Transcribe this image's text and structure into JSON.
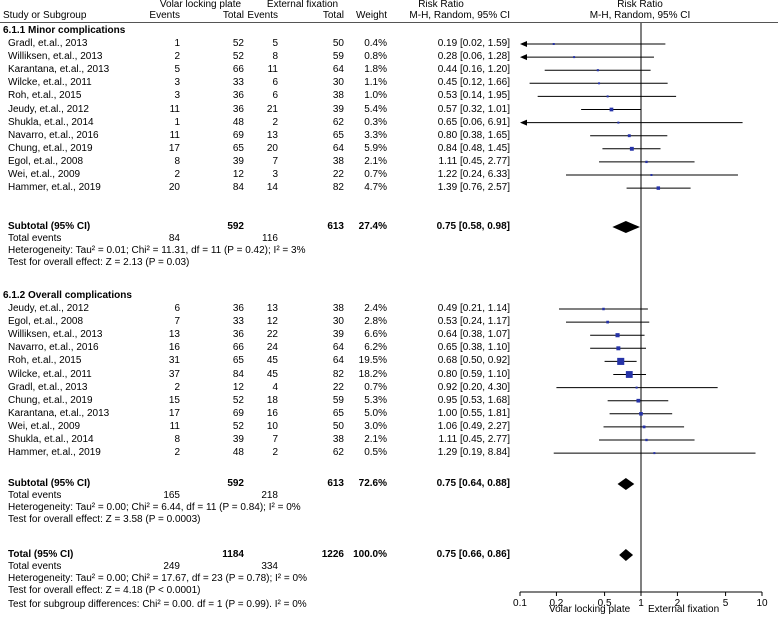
{
  "header": {
    "group1": "Volar locking plate",
    "group2": "External fixation",
    "rr_title1": "Risk Ratio",
    "rr_title2": "Risk Ratio",
    "col_study": "Study or Subgroup",
    "col_events1": "Events",
    "col_total1": "Total",
    "col_events2": "Events",
    "col_total2": "Total",
    "col_weight": "Weight",
    "col_method1": "M-H, Random, 95% CI",
    "col_method2": "M-H, Random, 95% CI"
  },
  "subgroup1": {
    "title": "6.1.1 Minor complications",
    "subtotal": {
      "label": "Subtotal (95% CI)",
      "total1": "592",
      "total2": "613",
      "weight": "27.4%",
      "ci": "0.75 [0.58, 0.98]"
    },
    "total_events": {
      "label": "Total events",
      "e1": "84",
      "e2": "116"
    },
    "heterogeneity": "Heterogeneity: Tau² = 0.01; Chi² = 11.31, df = 11 (P = 0.42); I² = 3%",
    "overall": "Test for overall effect: Z = 2.13 (P = 0.03)"
  },
  "subgroup2": {
    "title": "6.1.2 Overall complications",
    "subtotal": {
      "label": "Subtotal (95% CI)",
      "total1": "592",
      "total2": "613",
      "weight": "72.6%",
      "ci": "0.75 [0.64, 0.88]"
    },
    "total_events": {
      "label": "Total events",
      "e1": "165",
      "e2": "218"
    },
    "heterogeneity": "Heterogeneity: Tau² = 0.00; Chi² = 6.44, df = 11 (P = 0.84); I² = 0%",
    "overall": "Test for overall effect: Z = 3.58 (P = 0.0003)"
  },
  "total": {
    "label": "Total (95% CI)",
    "total1": "1184",
    "total2": "1226",
    "weight": "100.0%",
    "ci": "0.75 [0.66, 0.86]",
    "events_label": "Total events",
    "e1": "249",
    "e2": "334",
    "heterogeneity": "Heterogeneity: Tau² = 0.00; Chi² = 17.67, df = 23 (P = 0.78); I² = 0%",
    "overall": "Test for overall effect: Z = 4.18 (P < 0.0001)",
    "subgroup_diff": "Test for subgroup differences: Chi² = 0.00. df = 1 (P = 0.99). I² = 0%"
  },
  "axis": {
    "favours_left": "Volar locking plate",
    "favours_right": "External fixation"
  },
  "chart_data": {
    "type": "forest",
    "scale": "log",
    "xlim": [
      0.1,
      10
    ],
    "ticks": [
      0.1,
      0.2,
      0.5,
      1,
      2,
      5,
      10
    ],
    "tick_labels": [
      "0.1",
      "0.2",
      "0.5",
      "1",
      "2",
      "5",
      "10"
    ],
    "reference": 1,
    "subgroups": [
      {
        "name": "6.1.1 Minor complications",
        "studies": [
          {
            "study": "Gradl, et.al., 2013",
            "e1": "1",
            "n1": "52",
            "e2": "5",
            "n2": "50",
            "weight": "0.4%",
            "ci_text": "0.19 [0.02, 1.59]",
            "rr": 0.19,
            "lo": 0.02,
            "hi": 1.59
          },
          {
            "study": "Williksen, et.al., 2013",
            "e1": "2",
            "n1": "52",
            "e2": "8",
            "n2": "59",
            "weight": "0.8%",
            "ci_text": "0.28 [0.06, 1.28]",
            "rr": 0.28,
            "lo": 0.06,
            "hi": 1.28
          },
          {
            "study": "Karantana, et.al., 2013",
            "e1": "5",
            "n1": "66",
            "e2": "11",
            "n2": "64",
            "weight": "1.8%",
            "ci_text": "0.44 [0.16, 1.20]",
            "rr": 0.44,
            "lo": 0.16,
            "hi": 1.2
          },
          {
            "study": "Wilcke, et.al., 2011",
            "e1": "3",
            "n1": "33",
            "e2": "6",
            "n2": "30",
            "weight": "1.1%",
            "ci_text": "0.45 [0.12, 1.66]",
            "rr": 0.45,
            "lo": 0.12,
            "hi": 1.66
          },
          {
            "study": "Roh, et.al., 2015",
            "e1": "3",
            "n1": "36",
            "e2": "6",
            "n2": "38",
            "weight": "1.0%",
            "ci_text": "0.53 [0.14, 1.95]",
            "rr": 0.53,
            "lo": 0.14,
            "hi": 1.95
          },
          {
            "study": "Jeudy, et.al., 2012",
            "e1": "11",
            "n1": "36",
            "e2": "21",
            "n2": "39",
            "weight": "5.4%",
            "ci_text": "0.57 [0.32, 1.01]",
            "rr": 0.57,
            "lo": 0.32,
            "hi": 1.01
          },
          {
            "study": "Shukla, et.al., 2014",
            "e1": "1",
            "n1": "48",
            "e2": "2",
            "n2": "62",
            "weight": "0.3%",
            "ci_text": "0.65 [0.06, 6.91]",
            "rr": 0.65,
            "lo": 0.06,
            "hi": 6.91
          },
          {
            "study": "Navarro, et.al., 2016",
            "e1": "11",
            "n1": "69",
            "e2": "13",
            "n2": "65",
            "weight": "3.3%",
            "ci_text": "0.80 [0.38, 1.65]",
            "rr": 0.8,
            "lo": 0.38,
            "hi": 1.65
          },
          {
            "study": "Chung, et.al., 2019",
            "e1": "17",
            "n1": "65",
            "e2": "20",
            "n2": "64",
            "weight": "5.9%",
            "ci_text": "0.84 [0.48, 1.45]",
            "rr": 0.84,
            "lo": 0.48,
            "hi": 1.45
          },
          {
            "study": "Egol, et.al., 2008",
            "e1": "8",
            "n1": "39",
            "e2": "7",
            "n2": "38",
            "weight": "2.1%",
            "ci_text": "1.11 [0.45, 2.77]",
            "rr": 1.11,
            "lo": 0.45,
            "hi": 2.77
          },
          {
            "study": "Wei, et.al., 2009",
            "e1": "2",
            "n1": "12",
            "e2": "3",
            "n2": "22",
            "weight": "0.7%",
            "ci_text": "1.22 [0.24, 6.33]",
            "rr": 1.22,
            "lo": 0.24,
            "hi": 6.33
          },
          {
            "study": "Hammer, et.al., 2019",
            "e1": "20",
            "n1": "84",
            "e2": "14",
            "n2": "82",
            "weight": "4.7%",
            "ci_text": "1.39 [0.76, 2.57]",
            "rr": 1.39,
            "lo": 0.76,
            "hi": 2.57
          }
        ],
        "pooled": {
          "rr": 0.75,
          "lo": 0.58,
          "hi": 0.98
        }
      },
      {
        "name": "6.1.2 Overall complications",
        "studies": [
          {
            "study": "Jeudy, et.al., 2012",
            "e1": "6",
            "n1": "36",
            "e2": "13",
            "n2": "38",
            "weight": "2.4%",
            "ci_text": "0.49 [0.21, 1.14]",
            "rr": 0.49,
            "lo": 0.21,
            "hi": 1.14
          },
          {
            "study": "Egol, et.al., 2008",
            "e1": "7",
            "n1": "33",
            "e2": "12",
            "n2": "30",
            "weight": "2.8%",
            "ci_text": "0.53 [0.24, 1.17]",
            "rr": 0.53,
            "lo": 0.24,
            "hi": 1.17
          },
          {
            "study": "Williksen, et.al., 2013",
            "e1": "13",
            "n1": "36",
            "e2": "22",
            "n2": "39",
            "weight": "6.6%",
            "ci_text": "0.64 [0.38, 1.07]",
            "rr": 0.64,
            "lo": 0.38,
            "hi": 1.07
          },
          {
            "study": "Navarro, et.al., 2016",
            "e1": "16",
            "n1": "66",
            "e2": "24",
            "n2": "64",
            "weight": "6.2%",
            "ci_text": "0.65 [0.38, 1.10]",
            "rr": 0.65,
            "lo": 0.38,
            "hi": 1.1
          },
          {
            "study": "Roh, et.al., 2015",
            "e1": "31",
            "n1": "65",
            "e2": "45",
            "n2": "64",
            "weight": "19.5%",
            "ci_text": "0.68 [0.50, 0.92]",
            "rr": 0.68,
            "lo": 0.5,
            "hi": 0.92
          },
          {
            "study": "Wilcke, et.al., 2011",
            "e1": "37",
            "n1": "84",
            "e2": "45",
            "n2": "82",
            "weight": "18.2%",
            "ci_text": "0.80 [0.59, 1.10]",
            "rr": 0.8,
            "lo": 0.59,
            "hi": 1.1
          },
          {
            "study": "Gradl, et.al., 2013",
            "e1": "2",
            "n1": "12",
            "e2": "4",
            "n2": "22",
            "weight": "0.7%",
            "ci_text": "0.92 [0.20, 4.30]",
            "rr": 0.92,
            "lo": 0.2,
            "hi": 4.3
          },
          {
            "study": "Chung, et.al., 2019",
            "e1": "15",
            "n1": "52",
            "e2": "18",
            "n2": "59",
            "weight": "5.3%",
            "ci_text": "0.95 [0.53, 1.68]",
            "rr": 0.95,
            "lo": 0.53,
            "hi": 1.68
          },
          {
            "study": "Karantana, et.al., 2013",
            "e1": "17",
            "n1": "69",
            "e2": "16",
            "n2": "65",
            "weight": "5.0%",
            "ci_text": "1.00 [0.55, 1.81]",
            "rr": 1.0,
            "lo": 0.55,
            "hi": 1.81
          },
          {
            "study": "Wei, et.al., 2009",
            "e1": "11",
            "n1": "52",
            "e2": "10",
            "n2": "50",
            "weight": "3.0%",
            "ci_text": "1.06 [0.49, 2.27]",
            "rr": 1.06,
            "lo": 0.49,
            "hi": 2.27
          },
          {
            "study": "Shukla, et.al., 2014",
            "e1": "8",
            "n1": "39",
            "e2": "7",
            "n2": "38",
            "weight": "2.1%",
            "ci_text": "1.11 [0.45, 2.77]",
            "rr": 1.11,
            "lo": 0.45,
            "hi": 2.77
          },
          {
            "study": "Hammer, et.al., 2019",
            "e1": "2",
            "n1": "48",
            "e2": "2",
            "n2": "62",
            "weight": "0.5%",
            "ci_text": "1.29 [0.19, 8.84]",
            "rr": 1.29,
            "lo": 0.19,
            "hi": 8.84
          }
        ],
        "pooled": {
          "rr": 0.75,
          "lo": 0.64,
          "hi": 0.88
        }
      }
    ],
    "overall": {
      "rr": 0.75,
      "lo": 0.66,
      "hi": 0.86
    }
  }
}
